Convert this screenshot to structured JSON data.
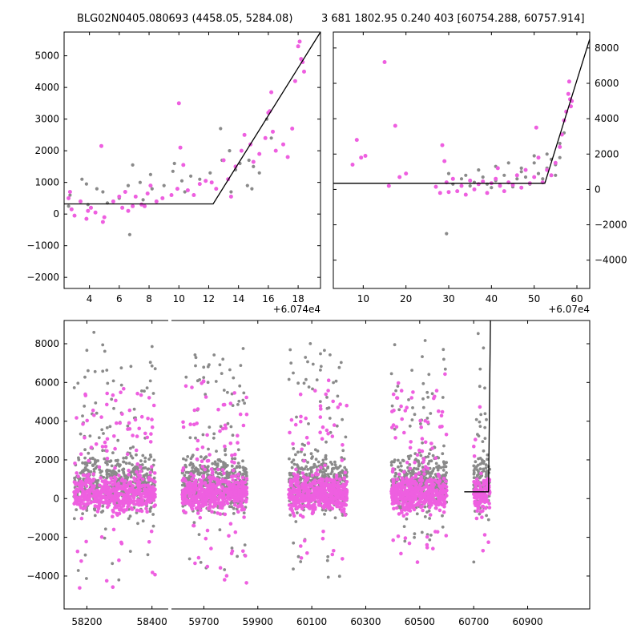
{
  "titles": {
    "left": "BLG02N0405.080693 (4458.05, 5284.08)",
    "right": "3 681 1802.95 0.240 403 [60754.288, 60757.914]"
  },
  "colors": {
    "primary": "#ee5fe0",
    "secondary": "#8a8a8a",
    "model": "#000000"
  },
  "chart_data": [
    {
      "id": "zoom-left",
      "type": "scatter",
      "x_offset_label": "+6.074e4",
      "xlim": [
        2.3,
        19.5
      ],
      "ylim": [
        -2350,
        5750
      ],
      "x_ticks": [
        4,
        6,
        8,
        10,
        12,
        14,
        16,
        18
      ],
      "y_ticks": [
        -2000,
        -1000,
        0,
        1000,
        2000,
        3000,
        4000,
        5000
      ],
      "y_axis_side": "left",
      "model_line": [
        [
          2.3,
          320
        ],
        [
          12.3,
          320
        ],
        [
          19.5,
          5750
        ]
      ],
      "series": [
        {
          "color_key": "secondary",
          "points": [
            [
              2.6,
              250
            ],
            [
              2.7,
              600
            ],
            [
              3.5,
              1100
            ],
            [
              3.8,
              950
            ],
            [
              3.9,
              300
            ],
            [
              4.5,
              800
            ],
            [
              4.9,
              700
            ],
            [
              5.2,
              350
            ],
            [
              6.0,
              500
            ],
            [
              6.6,
              900
            ],
            [
              6.9,
              1550
            ],
            [
              7.4,
              1000
            ],
            [
              7.6,
              450
            ],
            [
              8.1,
              1250
            ],
            [
              8.2,
              800
            ],
            [
              9.0,
              900
            ],
            [
              9.6,
              1350
            ],
            [
              9.7,
              1600
            ],
            [
              10.2,
              1050
            ],
            [
              10.4,
              700
            ],
            [
              10.8,
              1200
            ],
            [
              11.4,
              1100
            ],
            [
              12.1,
              1300
            ],
            [
              12.8,
              2700
            ],
            [
              12.9,
              1700
            ],
            [
              13.4,
              2000
            ],
            [
              13.8,
              1400
            ],
            [
              14.1,
              1600
            ],
            [
              14.6,
              900
            ],
            [
              14.9,
              800
            ],
            [
              15.4,
              1300
            ],
            [
              15.9,
              3000
            ],
            [
              16.2,
              2400
            ],
            [
              6.7,
              -650
            ],
            [
              13.5,
              700
            ],
            [
              14.7,
              1700
            ],
            [
              15.0,
              1500
            ]
          ]
        },
        {
          "color_key": "primary",
          "points": [
            [
              2.6,
              500
            ],
            [
              2.7,
              700
            ],
            [
              2.8,
              150
            ],
            [
              3.0,
              -50
            ],
            [
              3.4,
              400
            ],
            [
              3.8,
              -150
            ],
            [
              3.9,
              100
            ],
            [
              4.1,
              200
            ],
            [
              4.4,
              50
            ],
            [
              4.8,
              2150
            ],
            [
              4.9,
              -250
            ],
            [
              5.0,
              -100
            ],
            [
              5.6,
              400
            ],
            [
              6.0,
              550
            ],
            [
              6.2,
              200
            ],
            [
              6.4,
              700
            ],
            [
              6.6,
              100
            ],
            [
              6.9,
              250
            ],
            [
              7.1,
              550
            ],
            [
              7.5,
              300
            ],
            [
              7.7,
              250
            ],
            [
              7.9,
              650
            ],
            [
              8.1,
              900
            ],
            [
              8.5,
              400
            ],
            [
              8.9,
              500
            ],
            [
              9.5,
              600
            ],
            [
              9.9,
              800
            ],
            [
              10.0,
              3500
            ],
            [
              10.1,
              2100
            ],
            [
              10.3,
              1550
            ],
            [
              10.6,
              750
            ],
            [
              11.0,
              600
            ],
            [
              11.4,
              950
            ],
            [
              11.8,
              1050
            ],
            [
              12.2,
              1000
            ],
            [
              12.5,
              800
            ],
            [
              13.0,
              1700
            ],
            [
              13.3,
              1100
            ],
            [
              13.5,
              550
            ],
            [
              13.8,
              1500
            ],
            [
              14.2,
              2000
            ],
            [
              14.4,
              2500
            ],
            [
              14.8,
              2200
            ],
            [
              15.0,
              1650
            ],
            [
              15.4,
              1900
            ],
            [
              15.8,
              2400
            ],
            [
              16.0,
              3200
            ],
            [
              16.1,
              3250
            ],
            [
              16.2,
              3850
            ],
            [
              16.3,
              2600
            ],
            [
              16.5,
              2000
            ],
            [
              17.0,
              2200
            ],
            [
              17.3,
              1800
            ],
            [
              17.6,
              2700
            ],
            [
              17.8,
              4200
            ],
            [
              18.0,
              5300
            ],
            [
              18.1,
              5450
            ],
            [
              18.2,
              4900
            ],
            [
              18.3,
              4800
            ],
            [
              18.4,
              4500
            ]
          ]
        }
      ]
    },
    {
      "id": "zoom-right",
      "type": "scatter",
      "x_offset_label": "+6.07e4",
      "xlim": [
        3,
        63
      ],
      "ylim": [
        -5600,
        8900
      ],
      "x_ticks": [
        10,
        20,
        30,
        40,
        50,
        60
      ],
      "y_ticks": [
        -4000,
        -2000,
        0,
        2000,
        4000,
        6000,
        8000
      ],
      "y_axis_side": "right",
      "model_line": [
        [
          3,
          350
        ],
        [
          52.5,
          350
        ],
        [
          63,
          8500
        ]
      ],
      "series": [
        {
          "color_key": "secondary",
          "points": [
            [
              29.5,
              -2500
            ],
            [
              31,
              300
            ],
            [
              33,
              600
            ],
            [
              35,
              200
            ],
            [
              36,
              400
            ],
            [
              38,
              700
            ],
            [
              39,
              300
            ],
            [
              40,
              100
            ],
            [
              41,
              500
            ],
            [
              42,
              250
            ],
            [
              43,
              800
            ],
            [
              44,
              400
            ],
            [
              45,
              150
            ],
            [
              46,
              600
            ],
            [
              47,
              1000
            ],
            [
              48,
              700
            ],
            [
              49,
              300
            ],
            [
              50,
              1500
            ],
            [
              51,
              900
            ],
            [
              52,
              600
            ],
            [
              53,
              1200
            ],
            [
              54,
              1700
            ],
            [
              55,
              1400
            ],
            [
              56,
              2600
            ],
            [
              57,
              3200
            ],
            [
              30,
              900
            ],
            [
              34,
              800
            ],
            [
              37,
              1100
            ],
            [
              41,
              1300
            ],
            [
              44,
              1500
            ],
            [
              47,
              1200
            ],
            [
              50,
              1900
            ],
            [
              53,
              2000
            ],
            [
              55,
              800
            ],
            [
              56,
              1800
            ]
          ]
        },
        {
          "color_key": "primary",
          "points": [
            [
              7.5,
              1400
            ],
            [
              8.5,
              2800
            ],
            [
              9.5,
              1800
            ],
            [
              10.5,
              1900
            ],
            [
              15,
              7200
            ],
            [
              16,
              200
            ],
            [
              17.5,
              3600
            ],
            [
              18.5,
              700
            ],
            [
              20,
              900
            ],
            [
              27,
              150
            ],
            [
              28,
              -200
            ],
            [
              28.5,
              2500
            ],
            [
              29,
              1600
            ],
            [
              29.5,
              400
            ],
            [
              30,
              -150
            ],
            [
              31,
              600
            ],
            [
              32,
              -100
            ],
            [
              33,
              200
            ],
            [
              34,
              -300
            ],
            [
              35,
              500
            ],
            [
              36,
              0
            ],
            [
              37,
              300
            ],
            [
              38,
              450
            ],
            [
              39,
              -200
            ],
            [
              40,
              350
            ],
            [
              41,
              600
            ],
            [
              41.5,
              1200
            ],
            [
              42,
              200
            ],
            [
              43,
              -100
            ],
            [
              44,
              400
            ],
            [
              45,
              250
            ],
            [
              46,
              800
            ],
            [
              47,
              100
            ],
            [
              48,
              1100
            ],
            [
              49,
              350
            ],
            [
              50,
              700
            ],
            [
              50.5,
              3500
            ],
            [
              51,
              1800
            ],
            [
              52,
              400
            ],
            [
              53,
              1100
            ],
            [
              54,
              800
            ],
            [
              55,
              1500
            ],
            [
              56,
              2400
            ],
            [
              56.5,
              3100
            ],
            [
              57,
              3900
            ],
            [
              57.5,
              4400
            ],
            [
              58,
              5400
            ],
            [
              58.2,
              6100
            ],
            [
              58.4,
              5100
            ],
            [
              58.6,
              4700
            ],
            [
              58.8,
              5000
            ]
          ]
        }
      ]
    },
    {
      "id": "full-lightcurve",
      "type": "scatter",
      "ylim": [
        -5700,
        9200
      ],
      "y_ticks": [
        -4000,
        -2000,
        0,
        2000,
        4000,
        6000,
        8000
      ],
      "y_axis_side": "left",
      "segments": [
        {
          "xlim": [
            58130,
            58450
          ],
          "x_ticks": [
            58200,
            58400
          ],
          "seasons": [
            [
              58160,
              58410
            ]
          ]
        },
        {
          "xlim": [
            59580,
            61130
          ],
          "x_ticks": [
            59700,
            59900,
            60100,
            60300,
            60500,
            60700,
            60900
          ],
          "seasons": [
            [
              59620,
              59860
            ],
            [
              60015,
              60230
            ],
            [
              60395,
              60600
            ],
            [
              60700,
              60760
            ]
          ]
        }
      ],
      "model_line": [
        [
          60665,
          350
        ],
        [
          60755,
          350
        ],
        [
          60762,
          9200
        ]
      ],
      "series": [
        {
          "color_key": "secondary",
          "name": ""
        },
        {
          "color_key": "primary",
          "name": ""
        }
      ]
    }
  ]
}
